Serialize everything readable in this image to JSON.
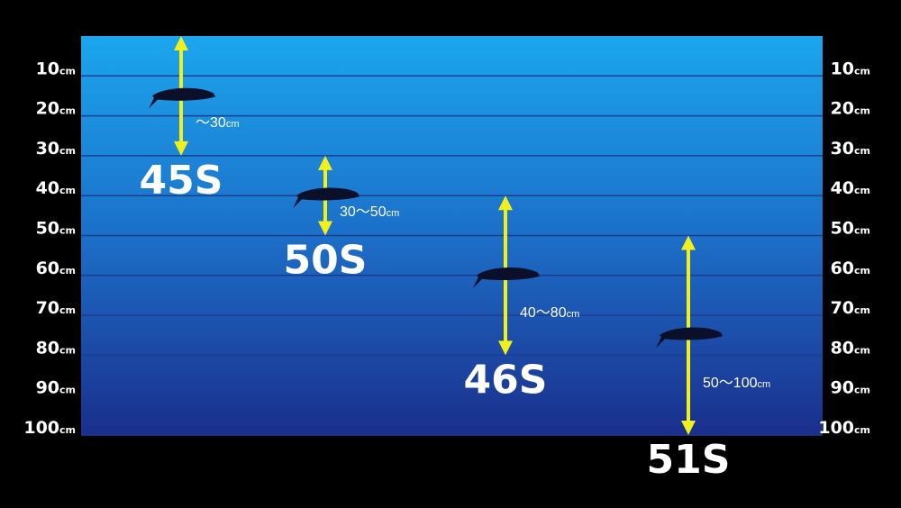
{
  "depth_axis": {
    "unit": "cm",
    "min": 0,
    "max": 100,
    "ticks": [
      10,
      20,
      30,
      40,
      50,
      60,
      70,
      80,
      90,
      100
    ]
  },
  "lures": [
    {
      "name": "45S",
      "range": "～30",
      "top": 0,
      "bottom": 30
    },
    {
      "name": "50S",
      "range": "30～50",
      "top": 30,
      "bottom": 50
    },
    {
      "name": "46S",
      "range": "40～80",
      "top": 40,
      "bottom": 80
    },
    {
      "name": "51S",
      "range": "50～100",
      "top": 50,
      "bottom": 100
    }
  ]
}
